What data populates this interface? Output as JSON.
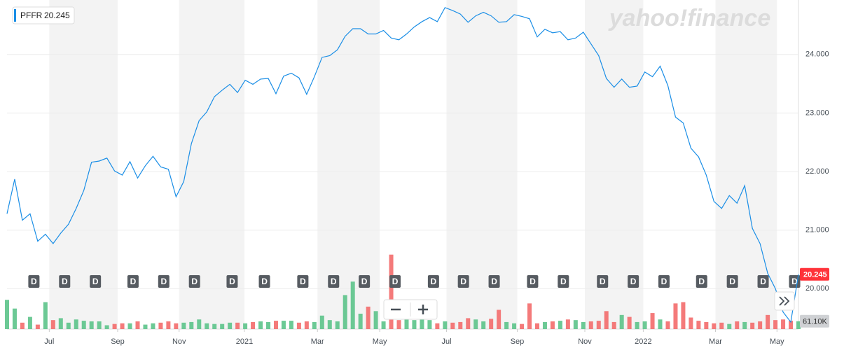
{
  "chart_data": {
    "type": "line",
    "ticker": {
      "symbol": "PFFR",
      "price": "20.245"
    },
    "logo": "yahoo!finance",
    "series": [
      {
        "name": "PFFR",
        "color": "#1a8ee6",
        "values": [
          21.28,
          21.87,
          21.17,
          21.28,
          20.81,
          20.93,
          20.77,
          20.95,
          21.1,
          21.37,
          21.68,
          22.16,
          22.18,
          22.23,
          22.01,
          21.94,
          22.17,
          21.89,
          22.1,
          22.26,
          22.08,
          22.04,
          21.57,
          21.83,
          22.48,
          22.87,
          23.02,
          23.28,
          23.39,
          23.49,
          23.35,
          23.56,
          23.49,
          23.58,
          23.59,
          23.33,
          23.63,
          23.68,
          23.6,
          23.32,
          23.62,
          23.95,
          23.98,
          24.08,
          24.31,
          24.44,
          24.44,
          24.35,
          24.35,
          24.41,
          24.28,
          24.25,
          24.35,
          24.47,
          24.56,
          24.63,
          24.56,
          24.8,
          24.75,
          24.69,
          24.55,
          24.66,
          24.72,
          24.66,
          24.55,
          24.56,
          24.68,
          24.65,
          24.61,
          24.3,
          24.43,
          24.37,
          24.39,
          24.25,
          24.28,
          24.38,
          24.18,
          23.98,
          23.59,
          23.44,
          23.58,
          23.44,
          23.46,
          23.7,
          23.62,
          23.8,
          23.47,
          22.93,
          22.83,
          22.4,
          22.25,
          21.94,
          21.49,
          21.37,
          21.59,
          21.46,
          21.76,
          21.03,
          20.77,
          20.26,
          20.0,
          19.6,
          19.43,
          20.245
        ]
      }
    ],
    "volume": {
      "up_color": "#5cc38a",
      "down_color": "#f36b6b",
      "values": [
        228,
        160,
        50,
        95,
        35,
        210,
        70,
        85,
        50,
        75,
        65,
        60,
        60,
        30,
        40,
        45,
        45,
        60,
        35,
        45,
        50,
        60,
        45,
        50,
        55,
        75,
        45,
        40,
        40,
        50,
        50,
        45,
        55,
        60,
        55,
        65,
        65,
        65,
        50,
        60,
        55,
        105,
        70,
        60,
        265,
        370,
        120,
        175,
        140,
        60,
        580,
        70,
        75,
        70,
        80,
        70,
        45,
        60,
        50,
        55,
        85,
        75,
        60,
        80,
        150,
        55,
        45,
        40,
        200,
        45,
        55,
        60,
        65,
        75,
        70,
        55,
        60,
        65,
        140,
        55,
        110,
        95,
        55,
        60,
        125,
        75,
        60,
        200,
        210,
        90,
        65,
        55,
        45,
        50,
        40,
        60,
        55,
        50,
        60,
        110,
        70,
        75,
        65,
        61.1
      ],
      "vlim": [
        0,
        600
      ],
      "last_label": "61.10K"
    },
    "dividends": {
      "label": "D",
      "x": [
        3.5,
        7.5,
        11.5,
        16.4,
        20.4,
        24.4,
        29.3,
        33.5,
        38.5,
        42.5,
        46.5,
        50.5,
        55.5,
        59.4,
        63.4,
        68.4,
        72.4,
        77.5,
        81.5,
        85.5,
        90.4,
        94.4,
        98.4,
        102.5
      ]
    },
    "xlim": [
      0,
      103
    ],
    "xticks": [
      {
        "value": 5.5,
        "label": "Jul"
      },
      {
        "value": 14.4,
        "label": "Sep"
      },
      {
        "value": 22.4,
        "label": "Nov"
      },
      {
        "value": 30.9,
        "label": "2021"
      },
      {
        "value": 40.4,
        "label": "Mar"
      },
      {
        "value": 48.5,
        "label": "May"
      },
      {
        "value": 57.2,
        "label": "Jul"
      },
      {
        "value": 66.4,
        "label": "Sep"
      },
      {
        "value": 75.2,
        "label": "Nov"
      },
      {
        "value": 82.8,
        "label": "2022"
      },
      {
        "value": 92.2,
        "label": "Mar"
      },
      {
        "value": 100.2,
        "label": "May"
      }
    ],
    "ylim": [
      19.31,
      24.93
    ],
    "yticks": [
      {
        "value": 20,
        "label": "20.000"
      },
      {
        "value": 21,
        "label": "21.000"
      },
      {
        "value": 22,
        "label": "22.000"
      },
      {
        "value": 23,
        "label": "23.000"
      },
      {
        "value": 24,
        "label": "24.000"
      }
    ],
    "grid": true
  }
}
